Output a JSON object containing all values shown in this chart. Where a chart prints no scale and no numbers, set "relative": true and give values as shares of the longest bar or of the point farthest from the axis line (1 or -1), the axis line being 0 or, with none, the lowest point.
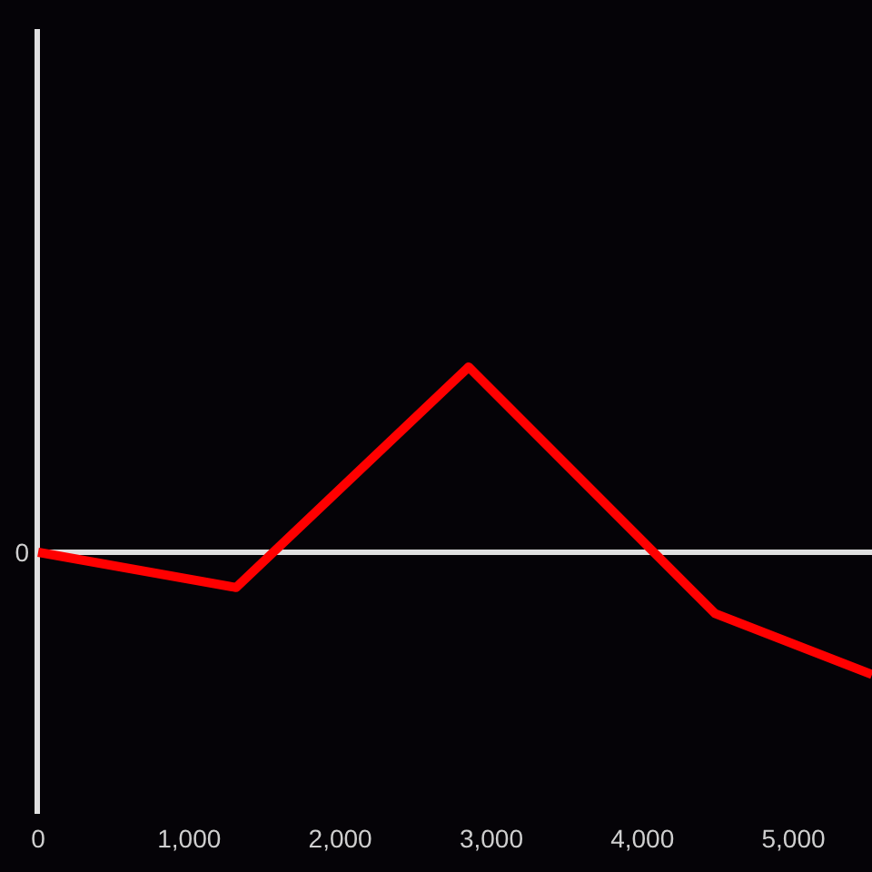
{
  "chart_data": {
    "type": "line",
    "relative": true,
    "x": [
      0,
      1310,
      2850,
      4480,
      5520
    ],
    "series": [
      {
        "color": "#ff0000",
        "values": [
          0,
          -0.19,
          1,
          -0.33,
          -0.66
        ]
      }
    ],
    "xlim": [
      0,
      5520
    ],
    "xticks": [
      0,
      {
        "value": 1000,
        "label": "1,000"
      },
      {
        "value": 2000,
        "label": "2,000"
      },
      {
        "value": 3000,
        "label": "3,000"
      },
      {
        "value": 4000,
        "label": "4,000"
      },
      {
        "value": 5000,
        "label": "5,000"
      }
    ],
    "ref_lines": [
      {
        "axis": "y",
        "value": 0,
        "label": "0",
        "color": "#e0e0e0",
        "line_style": "solid"
      }
    ],
    "grid": false,
    "marker": "none",
    "line_style": "solid"
  }
}
